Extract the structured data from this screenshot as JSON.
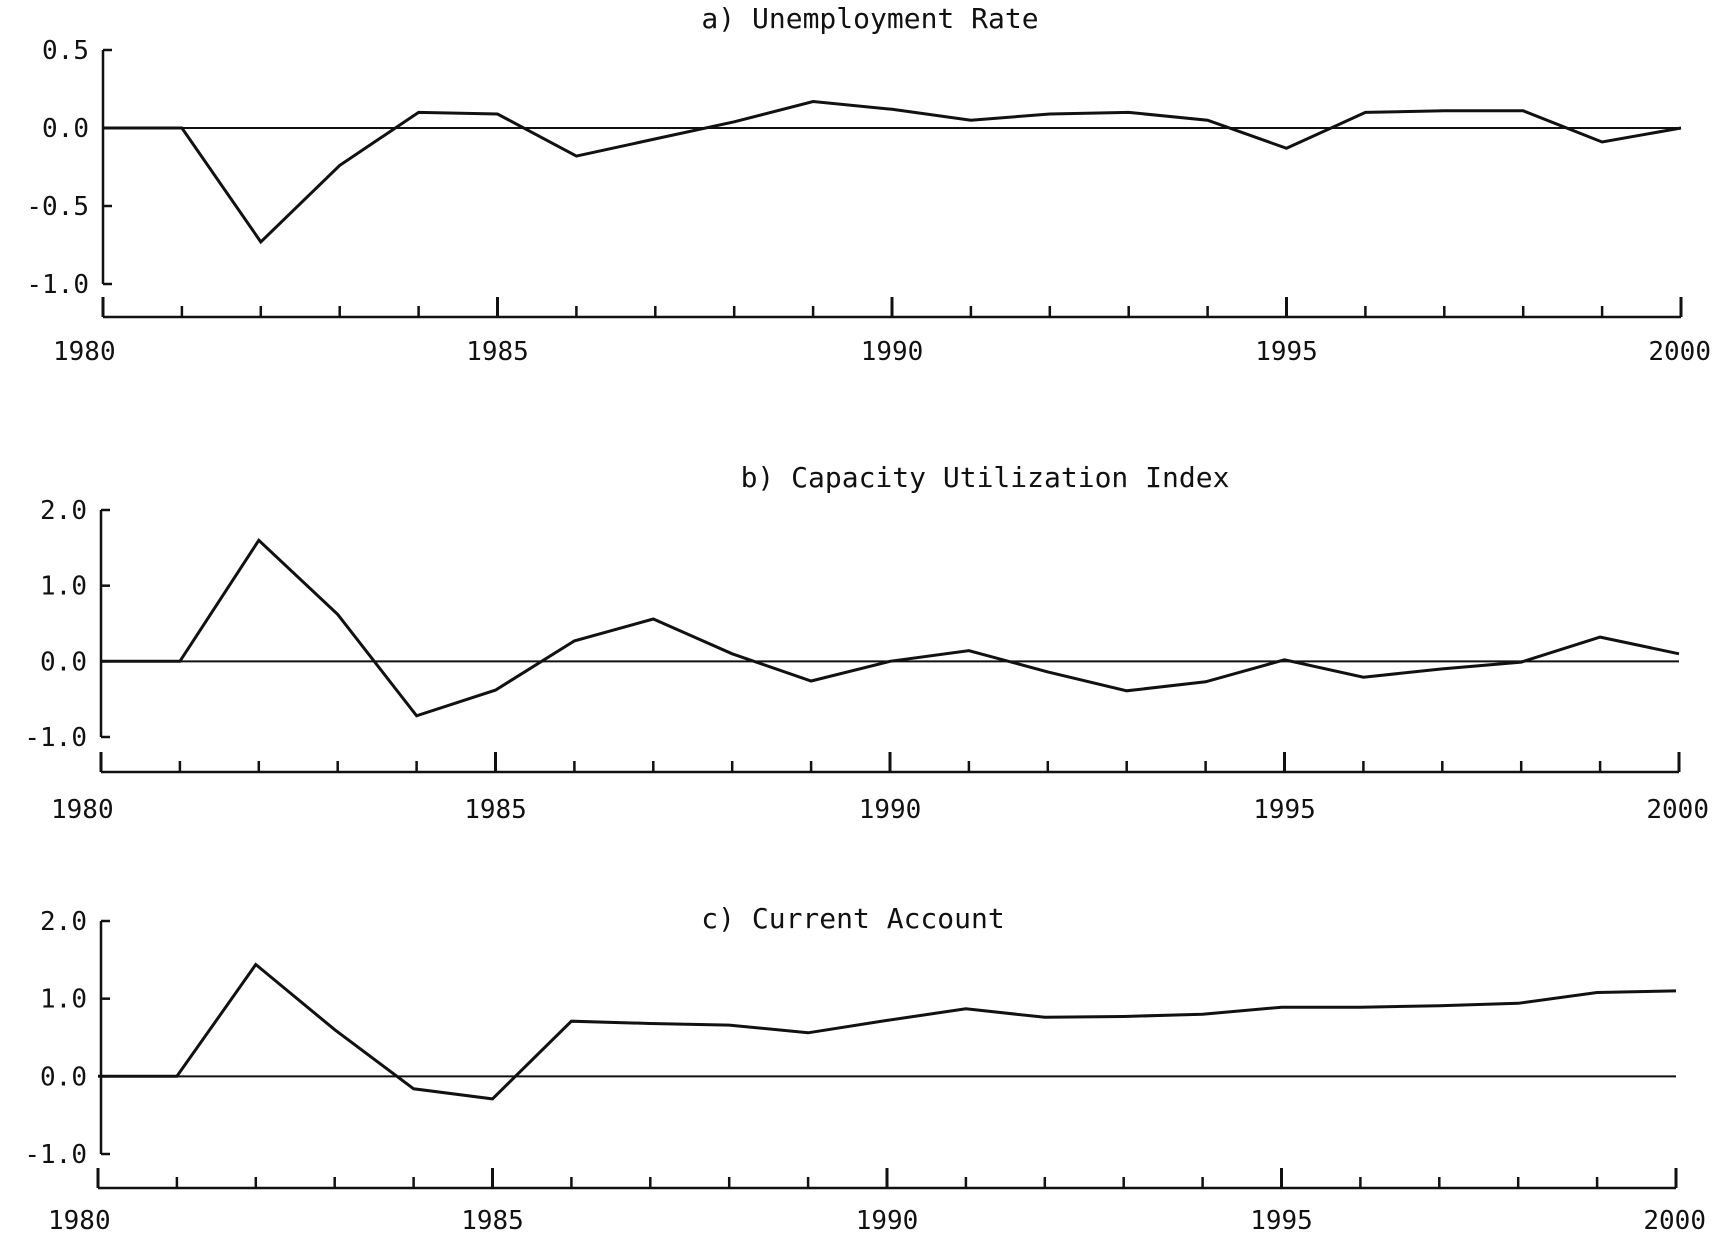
{
  "chart_data": [
    {
      "type": "line",
      "title": "a) Unemployment Rate",
      "x": [
        1980,
        1981,
        1982,
        1983,
        1984,
        1985,
        1986,
        1987,
        1988,
        1989,
        1990,
        1991,
        1992,
        1993,
        1994,
        1995,
        1996,
        1997,
        1998,
        1999,
        2000
      ],
      "series": [
        {
          "values": [
            0.0,
            0.0,
            -0.73,
            -0.24,
            0.1,
            0.09,
            -0.18,
            -0.07,
            0.04,
            0.17,
            0.12,
            0.05,
            0.09,
            0.1,
            0.05,
            -0.13,
            0.1,
            0.11,
            0.11,
            -0.09,
            0.0
          ]
        }
      ],
      "yticks": [
        "0.5",
        "0.0",
        "-0.5",
        "-1.0"
      ],
      "ytick_values": [
        0.5,
        0.0,
        -0.5,
        -1.0
      ],
      "ylim": [
        -1.0,
        0.5
      ],
      "xticks": [
        "1980",
        "1985",
        "1990",
        "1995",
        "2000"
      ],
      "xlim": [
        1980,
        2000
      ],
      "zero_line": true,
      "grid": false
    },
    {
      "type": "line",
      "title": "b) Capacity Utilization Index",
      "x": [
        1980,
        1981,
        1982,
        1983,
        1984,
        1985,
        1986,
        1987,
        1988,
        1989,
        1990,
        1991,
        1992,
        1993,
        1994,
        1995,
        1996,
        1997,
        1998,
        1999,
        2000
      ],
      "series": [
        {
          "values": [
            0.0,
            0.0,
            1.6,
            0.62,
            -0.72,
            -0.38,
            0.27,
            0.56,
            0.1,
            -0.26,
            0.0,
            0.14,
            -0.14,
            -0.39,
            -0.27,
            0.02,
            -0.21,
            -0.1,
            -0.01,
            0.32,
            0.1
          ]
        }
      ],
      "yticks": [
        "2.0",
        "1.0",
        "0.0",
        "-1.0"
      ],
      "ytick_values": [
        2.0,
        1.0,
        0.0,
        -1.0
      ],
      "ylim": [
        -1.0,
        2.0
      ],
      "xticks": [
        "1980",
        "1985",
        "1990",
        "1995",
        "2000"
      ],
      "xlim": [
        1980,
        2000
      ],
      "zero_line": true,
      "grid": false
    },
    {
      "type": "line",
      "title": "c) Current Account",
      "x": [
        1980,
        1981,
        1982,
        1983,
        1984,
        1985,
        1986,
        1987,
        1988,
        1989,
        1990,
        1991,
        1992,
        1993,
        1994,
        1995,
        1996,
        1997,
        1998,
        1999,
        2000
      ],
      "series": [
        {
          "values": [
            0.0,
            0.0,
            1.44,
            0.6,
            -0.16,
            -0.29,
            0.71,
            0.68,
            0.66,
            0.56,
            0.72,
            0.87,
            0.76,
            0.77,
            0.8,
            0.89,
            0.89,
            0.91,
            0.94,
            1.08,
            1.1
          ]
        }
      ],
      "yticks": [
        "2.0",
        "1.0",
        "0.0",
        "-1.0"
      ],
      "ytick_values": [
        2.0,
        1.0,
        0.0,
        -1.0
      ],
      "ylim": [
        -1.0,
        2.0
      ],
      "xticks": [
        "1980",
        "1985",
        "1990",
        "1995",
        "2000"
      ],
      "xlim": [
        1980,
        2000
      ],
      "zero_line": true,
      "grid": false
    }
  ]
}
